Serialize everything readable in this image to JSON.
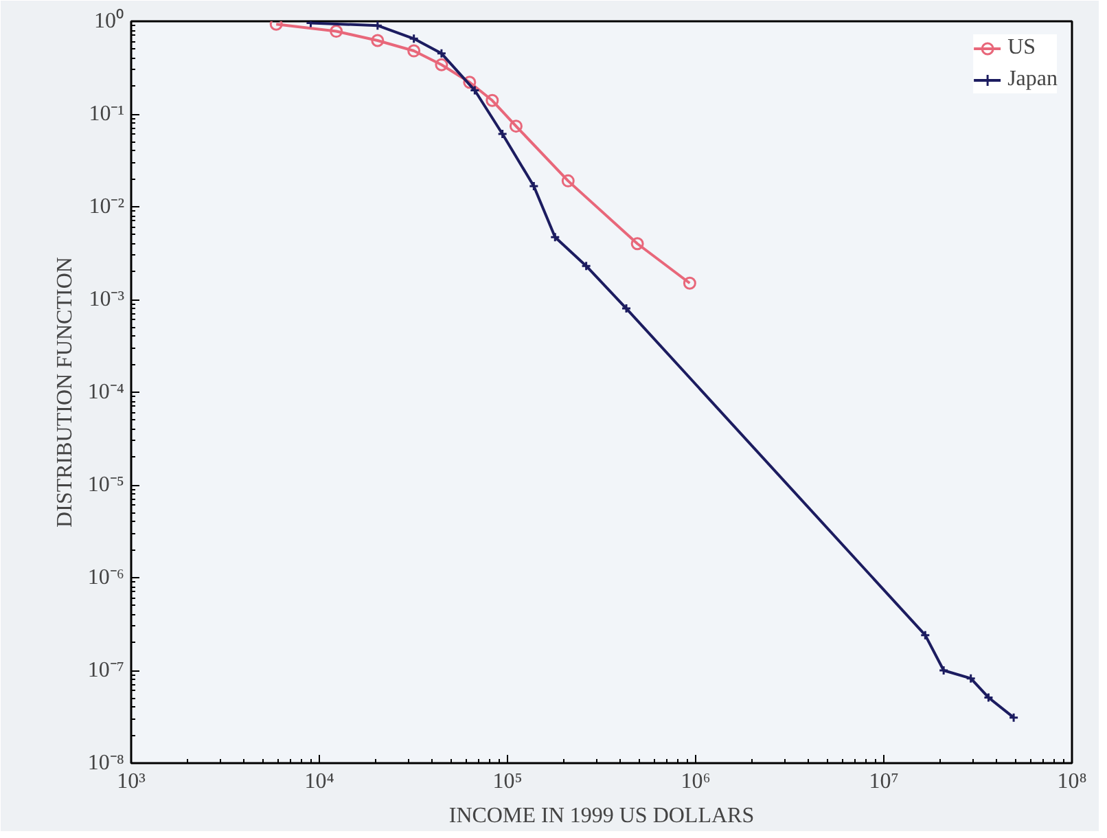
{
  "chart_data": {
    "type": "line",
    "xlabel": "INCOME IN 1999 US DOLLARS",
    "ylabel": "DISTRIBUTION FUNCTION",
    "log": "xy",
    "grid": false,
    "legend": "top right",
    "xlim": [
      1000,
      100000000
    ],
    "ylim": [
      1e-08,
      1
    ],
    "xticks": [
      {
        "value": 1000,
        "label": "10³"
      },
      {
        "value": 10000,
        "label": "10⁴"
      },
      {
        "value": 100000,
        "label": "10⁵"
      },
      {
        "value": 1000000,
        "label": "10⁶"
      },
      {
        "value": 10000000,
        "label": "10⁷"
      },
      {
        "value": 100000000,
        "label": "10⁸"
      }
    ],
    "yticks": [
      {
        "value": 1e-08,
        "label": "10⁻⁸"
      },
      {
        "value": 1e-07,
        "label": "10⁻⁷"
      },
      {
        "value": 1e-06,
        "label": "10⁻⁶"
      },
      {
        "value": 1e-05,
        "label": "10⁻⁵"
      },
      {
        "value": 0.0001,
        "label": "10⁻⁴"
      },
      {
        "value": 0.001,
        "label": "10⁻³"
      },
      {
        "value": 0.01,
        "label": "10⁻²"
      },
      {
        "value": 0.1,
        "label": "10⁻¹"
      },
      {
        "value": 1,
        "label": "10⁰"
      }
    ],
    "series": [
      {
        "name": "US",
        "color": "#e8677a",
        "marker": "circle",
        "x": [
          5900,
          12300,
          20400,
          31800,
          44600,
          62900,
          83000,
          111000,
          210000,
          490000,
          930000
        ],
        "values": [
          0.93,
          0.78,
          0.62,
          0.48,
          0.34,
          0.22,
          0.14,
          0.074,
          0.019,
          0.004,
          0.0015
        ]
      },
      {
        "name": "Japan",
        "color": "#1c1c60",
        "marker": "cross",
        "x": [
          9000,
          20400,
          31800,
          44600,
          67000,
          94000,
          138000,
          179000,
          262000,
          428000,
          16600000,
          20800000,
          29000000,
          36000000,
          49000000
        ],
        "values": [
          0.96,
          0.9,
          0.65,
          0.45,
          0.18,
          0.061,
          0.0167,
          0.0047,
          0.0023,
          0.0008,
          2.4e-07,
          1e-07,
          8.2e-08,
          5.1e-08,
          3.1e-08
        ]
      }
    ]
  }
}
